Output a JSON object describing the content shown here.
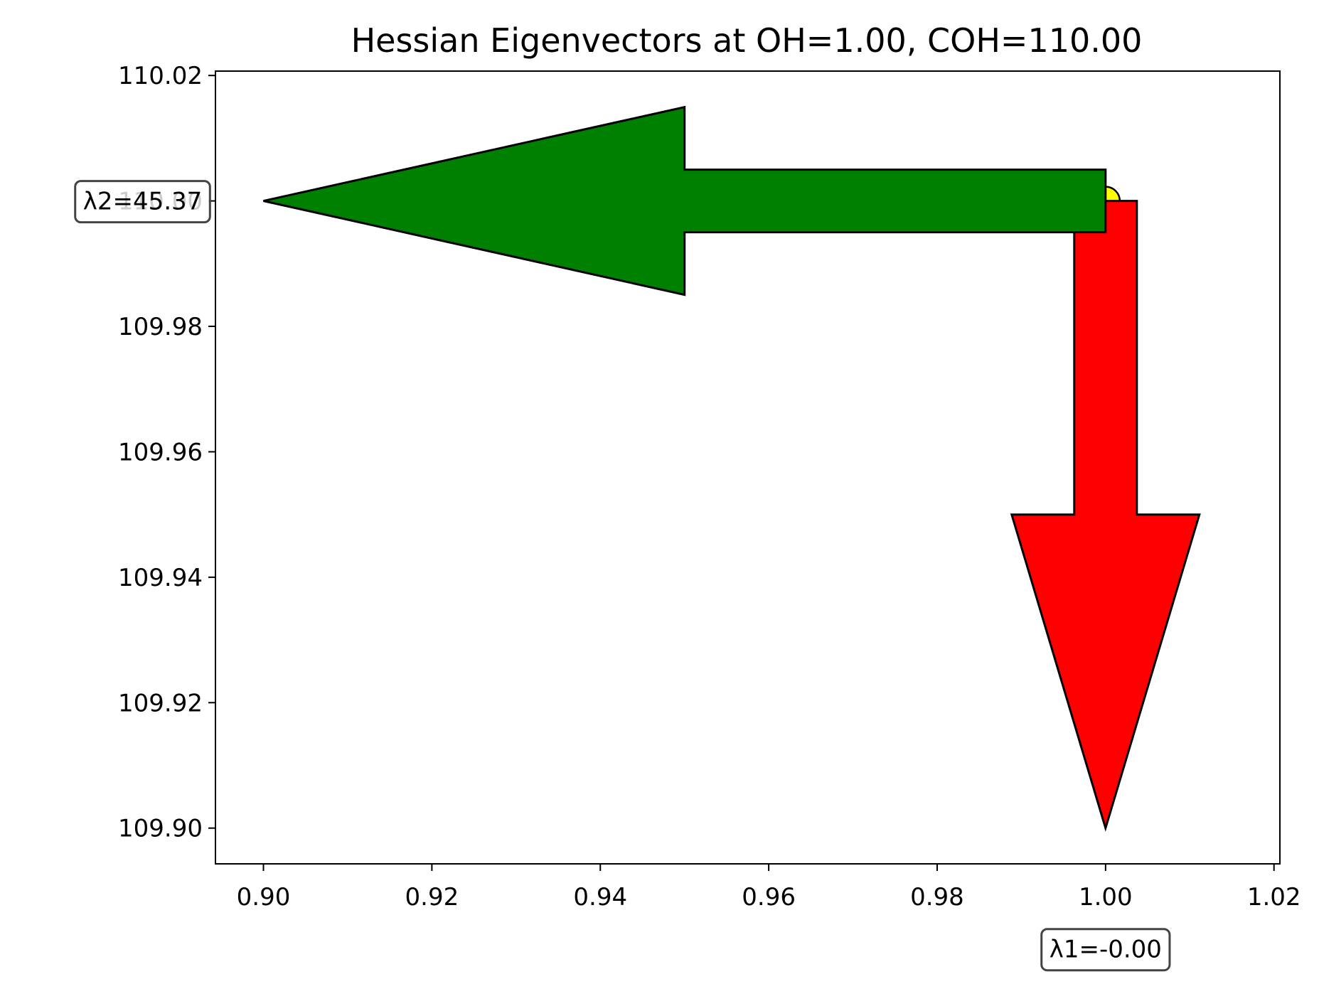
{
  "chart_data": {
    "type": "quiver",
    "title": "Hessian Eigenvectors at OH=1.00, COH=110.00",
    "xlabel": "",
    "ylabel": "",
    "xlim": [
      0.8943,
      1.0207
    ],
    "ylim": [
      109.8943,
      110.0207
    ],
    "grid": false,
    "x_ticks": [
      "0.90",
      "0.92",
      "0.94",
      "0.96",
      "0.98",
      "1.00",
      "1.02"
    ],
    "x_tick_values": [
      0.9,
      0.92,
      0.94,
      0.96,
      0.98,
      1.0,
      1.02
    ],
    "y_ticks": [
      "109.90",
      "109.92",
      "109.94",
      "109.96",
      "109.98",
      "110.00",
      "110.02"
    ],
    "y_tick_values": [
      109.9,
      109.92,
      109.94,
      109.96,
      109.98,
      110.0,
      110.02
    ],
    "point": {
      "x": 1.0,
      "y": 110.0,
      "color": "#ffff00"
    },
    "arrows": [
      {
        "name": "eigenvector-1",
        "x0": 1.0,
        "y0": 110.0,
        "x1": 1.0,
        "y1": 109.9,
        "color": "#ff0000",
        "label": "λ1=-0.00"
      },
      {
        "name": "eigenvector-2",
        "x0": 1.0,
        "y0": 110.0,
        "x1": 0.9,
        "y1": 110.0,
        "color": "#008000",
        "label": "λ2=45.37"
      }
    ]
  }
}
